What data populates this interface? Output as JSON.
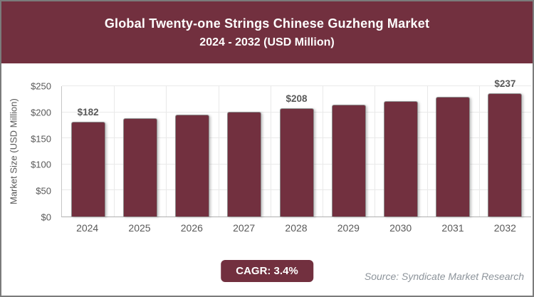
{
  "header": {
    "title_line1": "Global Twenty-one Strings Chinese Guzheng Market",
    "title_line2": "2024 - 2032 (USD Million)"
  },
  "chart_data": {
    "type": "bar",
    "title": "Global Twenty-one Strings Chinese Guzheng Market 2024 - 2032 (USD Million)",
    "ylabel": "Market Size (USD Million)",
    "xlabel": "",
    "ylim": [
      0,
      250
    ],
    "ytick_step": 50,
    "ytick_labels": [
      "$0",
      "$50",
      "$100",
      "$150",
      "$200",
      "$250"
    ],
    "categories": [
      "2024",
      "2025",
      "2026",
      "2027",
      "2028",
      "2029",
      "2030",
      "2031",
      "2032"
    ],
    "values": [
      182,
      188,
      195,
      201,
      208,
      215,
      221,
      229,
      237
    ],
    "data_labels": [
      "$182",
      "",
      "",
      "",
      "$208",
      "",
      "",
      "",
      "$237"
    ],
    "grid": true,
    "legend_position": "none",
    "bar_color": "#72303f"
  },
  "footer": {
    "cagr_label": "CAGR: 3.4%",
    "source": "Source: Syndicate Market Research"
  },
  "colors": {
    "accent_maroon": "#72303f",
    "text_gray": "#595959",
    "source_gray": "#8d949b",
    "gridline": "#e9e9e9",
    "page_border": "#7b7b7b",
    "background": "#ffffff"
  }
}
